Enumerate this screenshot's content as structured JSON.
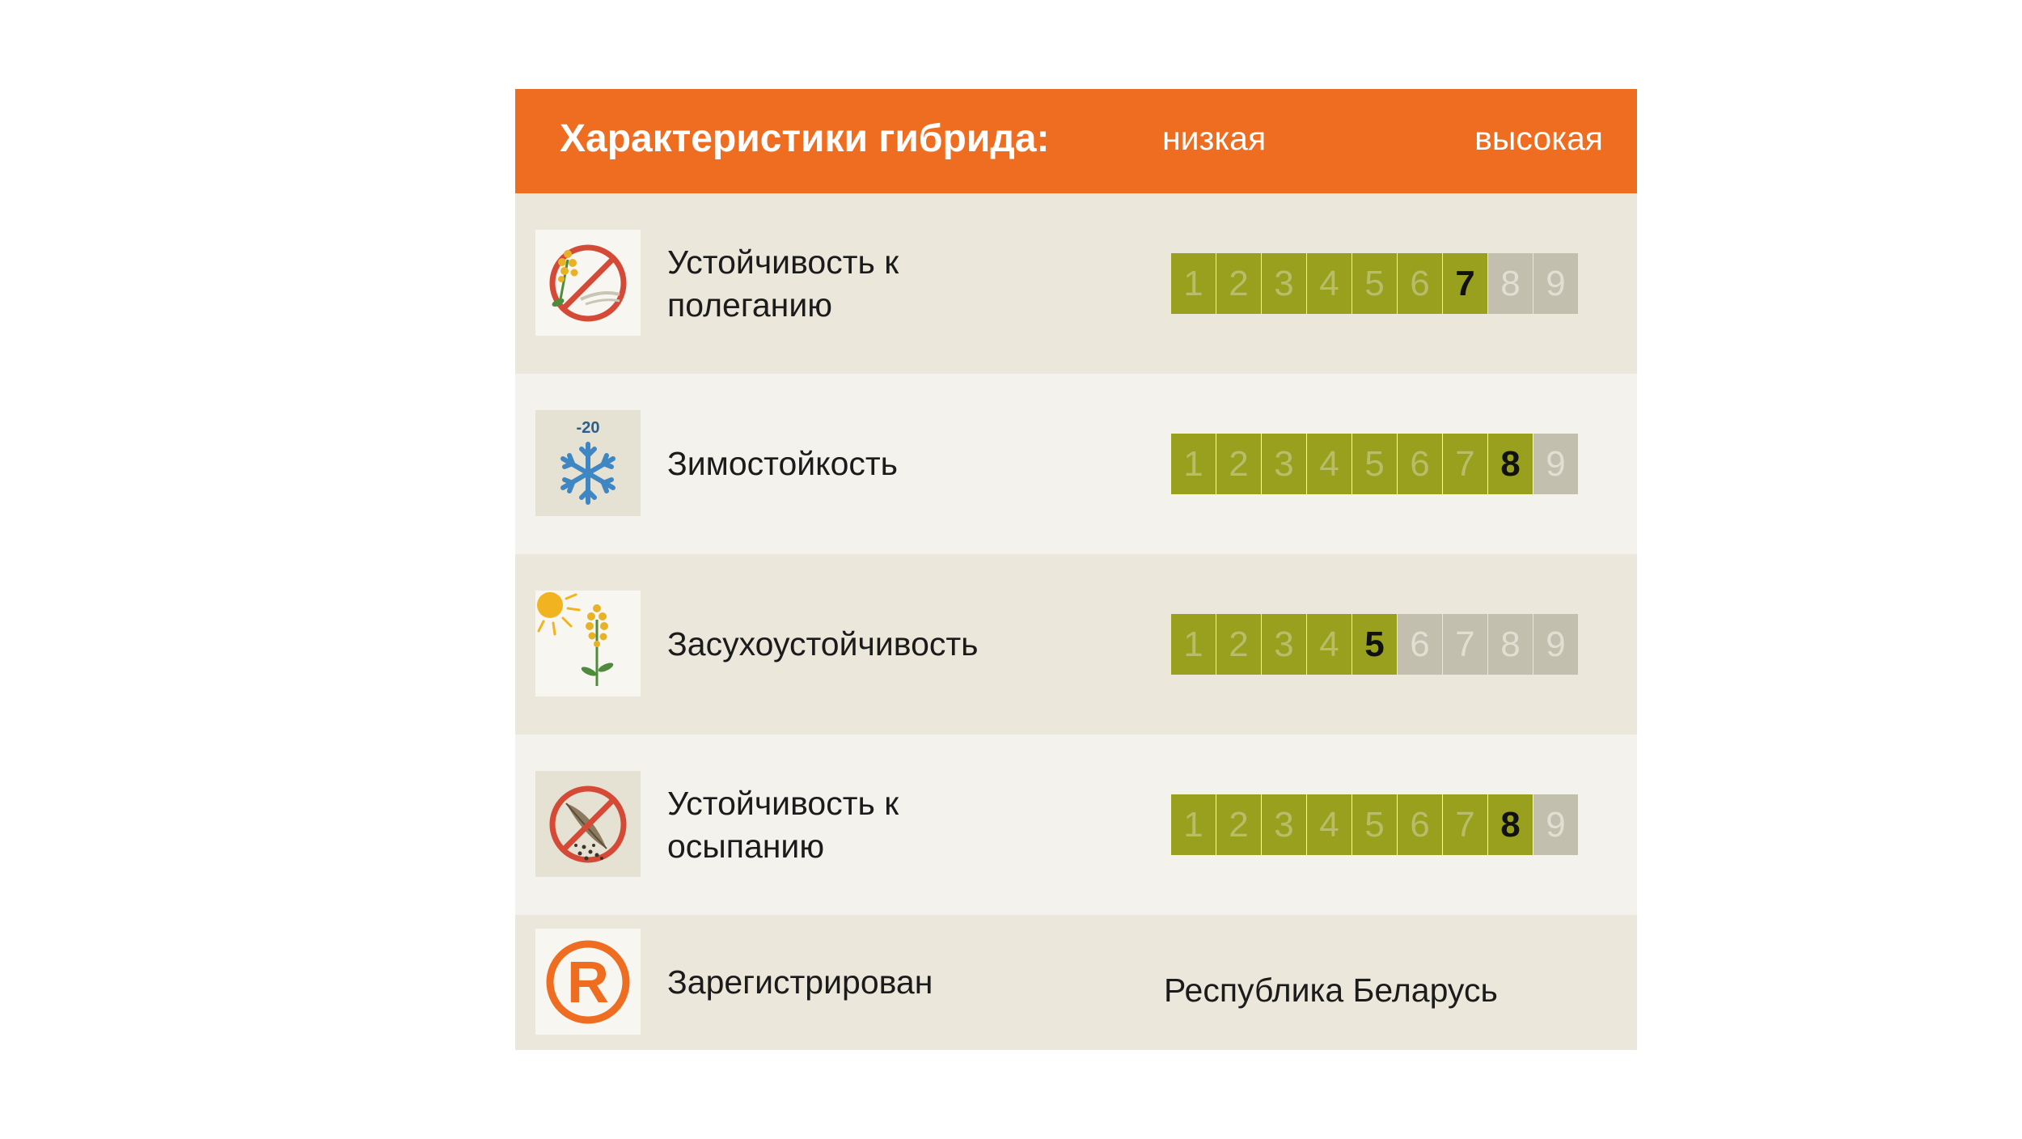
{
  "header": {
    "title": "Характеристики гибрида:",
    "low_label": "низкая",
    "high_label": "высокая"
  },
  "colors": {
    "accent": "#ee6d21",
    "scale_filled": "#98a01e",
    "scale_empty": "#c2bfaf",
    "row_dark": "#ebe7da",
    "row_light": "#f3f2ec"
  },
  "scale_numbers": [
    "1",
    "2",
    "3",
    "4",
    "5",
    "6",
    "7",
    "8",
    "9"
  ],
  "traits": [
    {
      "label": "Устойчивость к полеганию",
      "icon": "no-lodging-icon",
      "score": 7
    },
    {
      "label": "Зимостойкость",
      "icon": "snowflake-minus20-icon",
      "score": 8
    },
    {
      "label": "Засухоустойчивость",
      "icon": "sun-rapeseed-icon",
      "score": 5
    },
    {
      "label": "Устойчивость к осыпанию",
      "icon": "no-shattering-icon",
      "score": 8
    }
  ],
  "registration": {
    "label": "Зарегистрирован",
    "value": "Республика Беларусь",
    "icon": "registered-icon"
  },
  "icon_texts": {
    "snow_temp": "-20"
  }
}
